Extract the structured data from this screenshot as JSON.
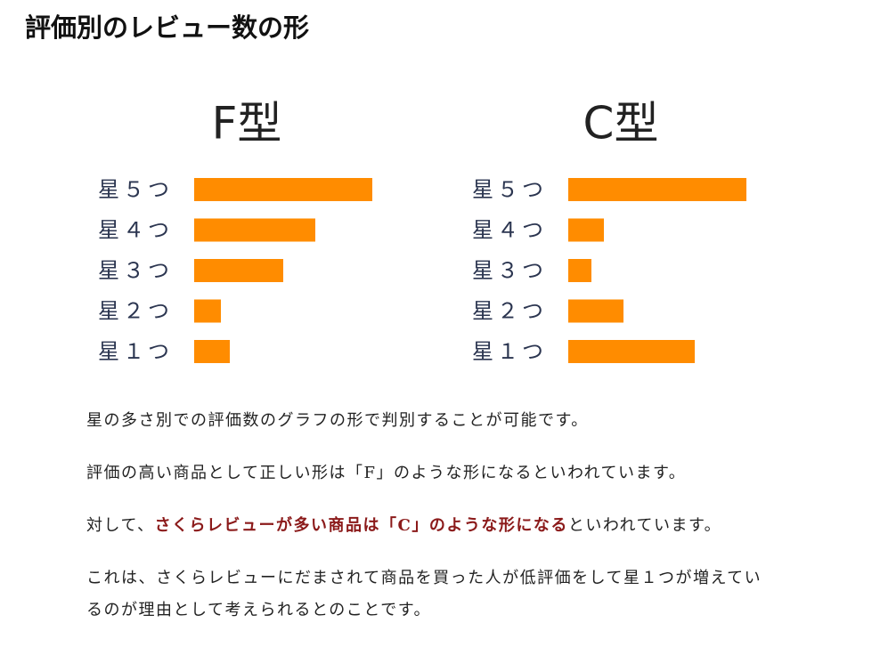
{
  "header": {
    "title": "評価別のレビュー数の形"
  },
  "chart_data": [
    {
      "type": "bar",
      "orientation": "horizontal",
      "title": "F型",
      "categories": [
        "星５つ",
        "星４つ",
        "星３つ",
        "星２つ",
        "星１つ"
      ],
      "values": [
        100,
        68,
        50,
        15,
        20
      ],
      "color": "#ff8c00",
      "xlim": [
        0,
        100
      ]
    },
    {
      "type": "bar",
      "orientation": "horizontal",
      "title": "C型",
      "categories": [
        "星５つ",
        "星４つ",
        "星３つ",
        "星２つ",
        "星１つ"
      ],
      "values": [
        100,
        20,
        13,
        31,
        71
      ],
      "color": "#ff8c00",
      "xlim": [
        0,
        100
      ]
    }
  ],
  "paragraphs": [
    {
      "text": "星の多さ別での評価数のグラフの形で判別することが可能です。"
    },
    {
      "text": "評価の高い商品として正しい形は「F」のような形になるといわれています。"
    },
    {
      "before": "対して、",
      "emphasis": "さくらレビューが多い商品は「C」のような形になる",
      "after": "といわれています。"
    },
    {
      "text": "これは、さくらレビューにだまされて商品を買った人が低評価をして星１つが増えているのが理由として考えられるとのことです。"
    }
  ]
}
